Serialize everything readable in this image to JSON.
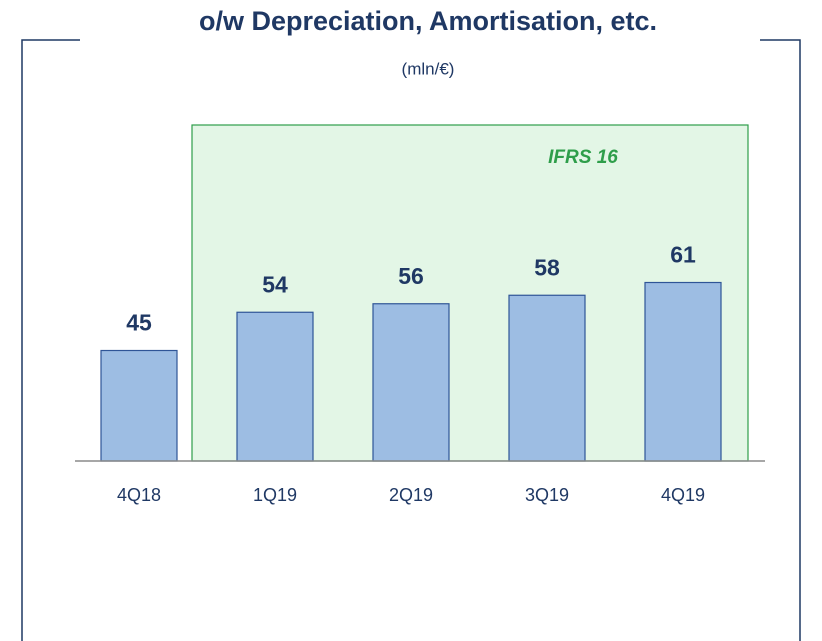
{
  "chart_data": {
    "type": "bar",
    "title": "o/w Depreciation, Amortisation, etc.",
    "subtitle": "(mln/€)",
    "annotation": "IFRS 16",
    "categories": [
      "4Q18",
      "1Q19",
      "2Q19",
      "3Q19",
      "4Q19"
    ],
    "values": [
      45,
      54,
      56,
      58,
      61
    ],
    "color": "#9dbde3",
    "ylim": [
      19,
      65
    ]
  }
}
